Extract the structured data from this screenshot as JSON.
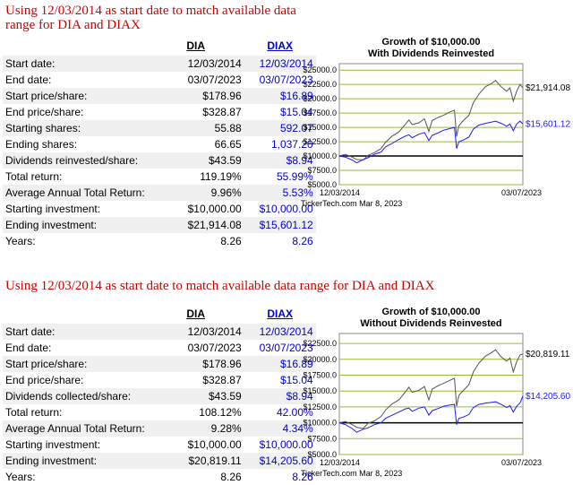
{
  "panels": [
    {
      "heading": "Using 12/03/2014 as start date to match available data range for DIA and DIAX",
      "columns": [
        "DIA",
        "DIAX"
      ],
      "rows": [
        {
          "label": "Start date:",
          "dia": "12/03/2014",
          "diax": "12/03/2014"
        },
        {
          "label": "End date:",
          "dia": "03/07/2023",
          "diax": "03/07/2023"
        },
        {
          "label": "Start price/share:",
          "dia": "$178.96",
          "diax": "$16.89"
        },
        {
          "label": "End price/share:",
          "dia": "$328.87",
          "diax": "$15.04"
        },
        {
          "label": "Starting shares:",
          "dia": "55.88",
          "diax": "592.07"
        },
        {
          "label": "Ending shares:",
          "dia": "66.65",
          "diax": "1,037.20"
        },
        {
          "label": "Dividends reinvested/share:",
          "dia": "$43.59",
          "diax": "$8.94"
        },
        {
          "label": "Total return:",
          "dia": "119.19%",
          "diax": "55.99%"
        },
        {
          "label": "Average Annual Total Return:",
          "dia": "9.96%",
          "diax": "5.53%"
        },
        {
          "label": "Starting investment:",
          "dia": "$10,000.00",
          "diax": "$10,000.00"
        },
        {
          "label": "Ending investment:",
          "dia": "$21,914.08",
          "diax": "$15,601.12"
        },
        {
          "label": "Years:",
          "dia": "8.26",
          "diax": "8.26"
        }
      ]
    },
    {
      "heading": "Using 12/03/2014 as start date to match available data range for DIA and DIAX",
      "columns": [
        "DIA",
        "DIAX"
      ],
      "rows": [
        {
          "label": "Start date:",
          "dia": "12/03/2014",
          "diax": "12/03/2014"
        },
        {
          "label": "End date:",
          "dia": "03/07/2023",
          "diax": "03/07/2023"
        },
        {
          "label": "Start price/share:",
          "dia": "$178.96",
          "diax": "$16.89"
        },
        {
          "label": "End price/share:",
          "dia": "$328.87",
          "diax": "$15.04"
        },
        {
          "label": "Dividends collected/share:",
          "dia": "$43.59",
          "diax": "$8.94"
        },
        {
          "label": "Total return:",
          "dia": "108.12%",
          "diax": "42.00%"
        },
        {
          "label": "Average Annual Total Return:",
          "dia": "9.28%",
          "diax": "4.34%"
        },
        {
          "label": "Starting investment:",
          "dia": "$10,000.00",
          "diax": "$10,000.00"
        },
        {
          "label": "Ending investment:",
          "dia": "$20,819.11",
          "diax": "$14,205.60"
        },
        {
          "label": "Years:",
          "dia": "8.26",
          "diax": "8.26"
        }
      ]
    }
  ],
  "chart_data": [
    {
      "type": "line",
      "title": "Growth of $10,000.00",
      "subtitle": "With Dividends Reinvested",
      "xlabel": "",
      "ylabel": "",
      "x_tick_labels": [
        "12/03/2014",
        "03/07/2023"
      ],
      "y_ticks": [
        "$25000.0",
        "$22500.0",
        "$20000.0",
        "$17500.0",
        "$15000.0",
        "$12500.0",
        "$10000.0",
        "$7500.0",
        "$5000.0"
      ],
      "ylim": [
        5000,
        25500
      ],
      "credit": "TickerTech.com  Mar 8, 2023",
      "baseline": 10000,
      "grid": "horizontal",
      "colors": {
        "dia": "#555555",
        "diax": "#1a1aff",
        "baseline": "#000000",
        "grid": "#99bb33"
      },
      "series": [
        {
          "key": "dia",
          "end_label": "$21,914.08",
          "x": [
            2014.92,
            2015.2,
            2015.5,
            2015.7,
            2016.0,
            2016.2,
            2016.5,
            2016.8,
            2017.0,
            2017.3,
            2017.6,
            2017.9,
            2018.05,
            2018.2,
            2018.5,
            2018.75,
            2018.95,
            2019.1,
            2019.4,
            2019.6,
            2019.9,
            2020.1,
            2020.2,
            2020.3,
            2020.5,
            2020.75,
            2020.95,
            2021.2,
            2021.5,
            2021.75,
            2021.95,
            2022.2,
            2022.45,
            2022.6,
            2022.75,
            2022.9,
            2023.05,
            2023.18
          ],
          "values": [
            10000,
            10300,
            9800,
            9400,
            9300,
            10100,
            10600,
            11300,
            12400,
            13500,
            14200,
            15600,
            16300,
            15500,
            15800,
            16500,
            14300,
            16200,
            16800,
            17100,
            17700,
            18000,
            13400,
            15300,
            16200,
            17100,
            19300,
            20800,
            22100,
            22600,
            23200,
            22100,
            21300,
            21900,
            19600,
            21300,
            22500,
            21914
          ]
        },
        {
          "key": "diax",
          "end_label": "$15,601.12",
          "x": [
            2014.92,
            2015.2,
            2015.5,
            2015.7,
            2016.0,
            2016.2,
            2016.5,
            2016.8,
            2017.0,
            2017.3,
            2017.6,
            2017.9,
            2018.05,
            2018.2,
            2018.5,
            2018.75,
            2018.95,
            2019.1,
            2019.4,
            2019.6,
            2019.9,
            2020.1,
            2020.2,
            2020.3,
            2020.5,
            2020.75,
            2020.95,
            2021.2,
            2021.5,
            2021.75,
            2021.95,
            2022.2,
            2022.45,
            2022.6,
            2022.75,
            2022.9,
            2023.05,
            2023.18
          ],
          "values": [
            10000,
            9800,
            9300,
            8800,
            9400,
            9700,
            10300,
            10700,
            11600,
            12200,
            12900,
            13500,
            13700,
            13200,
            13800,
            14100,
            12700,
            13600,
            14100,
            14500,
            14800,
            15000,
            11300,
            12500,
            12800,
            13300,
            14700,
            15400,
            15700,
            15900,
            16100,
            15700,
            15200,
            15600,
            14400,
            15600,
            16100,
            15601
          ]
        }
      ]
    },
    {
      "type": "line",
      "title": "Growth of $10,000.00",
      "subtitle": "Without Dividends Reinvested",
      "xlabel": "",
      "ylabel": "",
      "x_tick_labels": [
        "12/03/2014",
        "03/07/2023"
      ],
      "y_ticks": [
        "$22500.0",
        "$20000.0",
        "$17500.0",
        "$15000.0",
        "$12500.0",
        "$10000.0",
        "$7500.0",
        "$5000.0"
      ],
      "ylim": [
        5000,
        23500
      ],
      "credit": "TickerTech.com  Mar 8, 2023",
      "baseline": 10000,
      "grid": "horizontal",
      "colors": {
        "dia": "#555555",
        "diax": "#1a1aff",
        "baseline": "#000000",
        "grid": "#99bb33"
      },
      "series": [
        {
          "key": "dia",
          "end_label": "$20,819.11",
          "x": [
            2014.92,
            2015.2,
            2015.5,
            2015.7,
            2016.0,
            2016.2,
            2016.5,
            2016.8,
            2017.0,
            2017.3,
            2017.6,
            2017.9,
            2018.05,
            2018.2,
            2018.5,
            2018.75,
            2018.95,
            2019.1,
            2019.4,
            2019.6,
            2019.9,
            2020.1,
            2020.2,
            2020.3,
            2020.5,
            2020.75,
            2020.95,
            2021.2,
            2021.5,
            2021.75,
            2021.95,
            2022.2,
            2022.45,
            2022.6,
            2022.75,
            2022.9,
            2023.05,
            2023.18
          ],
          "values": [
            10000,
            10200,
            9700,
            9300,
            9100,
            9900,
            10300,
            11000,
            12000,
            13000,
            13600,
            14900,
            15600,
            14800,
            15100,
            15700,
            13600,
            15300,
            15900,
            16200,
            16700,
            17000,
            12600,
            14300,
            15100,
            16000,
            18000,
            19400,
            20500,
            21000,
            21500,
            20400,
            19700,
            20200,
            18000,
            19600,
            20700,
            20819
          ]
        },
        {
          "key": "diax",
          "end_label": "$14,205.60",
          "x": [
            2014.92,
            2015.2,
            2015.5,
            2015.7,
            2016.0,
            2016.2,
            2016.5,
            2016.8,
            2017.0,
            2017.3,
            2017.6,
            2017.9,
            2018.05,
            2018.2,
            2018.5,
            2018.75,
            2018.95,
            2019.1,
            2019.4,
            2019.6,
            2019.9,
            2020.1,
            2020.2,
            2020.3,
            2020.5,
            2020.75,
            2020.95,
            2021.2,
            2021.5,
            2021.75,
            2021.95,
            2022.2,
            2022.45,
            2022.6,
            2022.75,
            2022.9,
            2023.05,
            2023.18
          ],
          "values": [
            10000,
            9700,
            9100,
            8500,
            9000,
            9200,
            9700,
            10000,
            10700,
            11200,
            11700,
            12200,
            12300,
            11800,
            12300,
            12500,
            11200,
            11900,
            12300,
            12600,
            12800,
            12900,
            9700,
            10700,
            10900,
            11300,
            12400,
            12900,
            13100,
            13200,
            13300,
            12900,
            12400,
            12700,
            11700,
            12600,
            13100,
            14205
          ]
        }
      ]
    }
  ]
}
